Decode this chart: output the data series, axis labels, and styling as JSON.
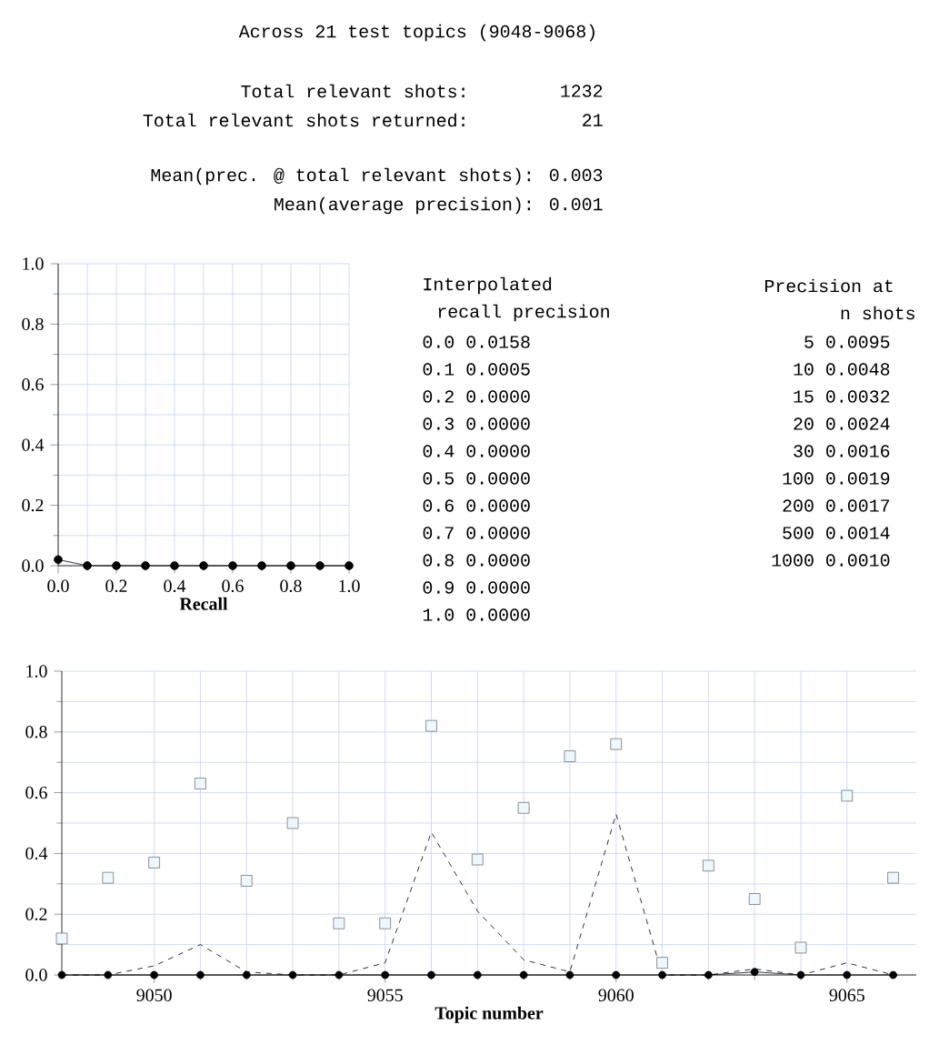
{
  "chart_data": [
    {
      "type": "other",
      "title": "Across 21 test topics (9048-9068)",
      "annotations": [
        "Total relevant shots:",
        "1232",
        "Total relevant shots returned:",
        "21",
        "Mean(prec. @ total relevant shots): 0.003",
        "Mean(average precision): 0.001"
      ]
    },
    {
      "type": "line",
      "xlabel": "Recall",
      "x": [
        0,
        0.1,
        0.2,
        0.3,
        0.4,
        0.5,
        0.6,
        0.7,
        0.8,
        0.9,
        1.0
      ],
      "values": [
        0.02,
        0,
        0,
        0,
        0,
        0,
        0,
        0,
        0,
        0,
        0
      ],
      "color": "#000000",
      "marker": "circle",
      "line_style": "solid",
      "grid": true,
      "xlim": [
        0,
        1
      ],
      "ylim": [
        0,
        1
      ],
      "xticks": [
        {
          "value": 0,
          "label": "0.0"
        },
        {
          "value": 0.2,
          "label": "0.2"
        },
        {
          "value": 0.4,
          "label": "0.4"
        },
        {
          "value": 0.6,
          "label": "0.6"
        },
        {
          "value": 0.8,
          "label": "0.8"
        },
        {
          "value": 1,
          "label": "1.0"
        }
      ],
      "yticks": [
        {
          "value": 0,
          "label": "0.0"
        },
        {
          "value": 0.2,
          "label": "0.2"
        },
        {
          "value": 0.4,
          "label": "0.4"
        },
        {
          "value": 0.6,
          "label": "0.6"
        },
        {
          "value": 0.8,
          "label": "0.8"
        },
        {
          "value": 1,
          "label": "1.0"
        }
      ]
    },
    {
      "type": "other",
      "annotations": [
        "Interpolated",
        "recall precision",
        "0.0  0.0158",
        "0.1  0.0005",
        "0.2  0.0000",
        "0.3  0.0000",
        "0.4  0.0000",
        "0.5  0.0000",
        "0.6  0.0000",
        "0.7  0.0000",
        "0.8  0.0000",
        "0.9  0.0000",
        "1.0  0.0000"
      ]
    },
    {
      "type": "other",
      "annotations": [
        "Precision at",
        "n shots",
        "5  0.0095",
        "10  0.0048",
        "15  0.0032",
        "20  0.0024",
        "30  0.0016",
        "100  0.0019",
        "200  0.0017",
        "500  0.0014",
        "1000  0.0010"
      ]
    },
    {
      "type": "line",
      "xlabel": "Topic number",
      "grid": true,
      "x": [
        9048,
        9049,
        9050,
        9051,
        9052,
        9053,
        9054,
        9055,
        9056,
        9057,
        9058,
        9059,
        9060,
        9061,
        9062,
        9063,
        9064,
        9065,
        9066
      ],
      "xlim": [
        9048,
        9066.5
      ],
      "xticks": [
        9050,
        9055,
        9060,
        9065
      ],
      "ylim": [
        0,
        1
      ],
      "yticks": [
        {
          "value": 0,
          "label": "0.0"
        },
        {
          "value": 0.2,
          "label": "0.2"
        },
        {
          "value": 0.4,
          "label": "0.4"
        },
        {
          "value": 0.6,
          "label": "0.6"
        },
        {
          "value": 0.8,
          "label": "0.8"
        },
        {
          "value": 1,
          "label": "1.0"
        }
      ],
      "series": [
        {
          "type": "scatter",
          "marker": "square",
          "color": "#eef7fb",
          "values": [
            0.12,
            0.32,
            0.37,
            0.63,
            0.31,
            0.5,
            0.17,
            0.17,
            0.82,
            0.38,
            0.55,
            0.72,
            0.76,
            0.04,
            0.36,
            0.25,
            0.09,
            0.59,
            0.32
          ]
        },
        {
          "type": "line",
          "marker": "none",
          "line_style": "dashed",
          "color": "#000000",
          "values": [
            0,
            0,
            0.03,
            0.1,
            0.01,
            0,
            0,
            0.04,
            0.47,
            0.21,
            0.05,
            0.01,
            0.53,
            0,
            0,
            0.02,
            0,
            0.04,
            0
          ]
        },
        {
          "type": "line",
          "marker": "circle",
          "line_style": "solid",
          "color": "#000000",
          "values": [
            0,
            0,
            0,
            0,
            0,
            0,
            0,
            0,
            0,
            0,
            0,
            0,
            0,
            0,
            0,
            0.01,
            0,
            0,
            0
          ]
        }
      ]
    }
  ]
}
